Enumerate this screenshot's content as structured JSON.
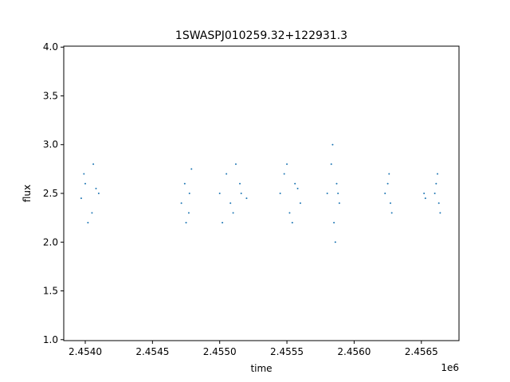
{
  "chart_data": {
    "type": "scatter",
    "title": "1SWASPJ010259.32+122931.3",
    "xlabel": "time",
    "ylabel": "flux",
    "x_offset_label": "1e6",
    "xlim": [
      2453840,
      2456780
    ],
    "ylim": [
      0.99,
      4.01
    ],
    "x_ticks": [
      2454000,
      2454500,
      2455000,
      2455500,
      2456000,
      2456500
    ],
    "x_tick_labels": [
      "2.4540",
      "2.4545",
      "2.4550",
      "2.4555",
      "2.4560",
      "2.4565"
    ],
    "y_ticks": [
      1.0,
      1.5,
      2.0,
      2.5,
      3.0,
      3.5,
      4.0
    ],
    "y_tick_labels": [
      "1.0",
      "1.5",
      "2.0",
      "2.5",
      "3.0",
      "3.5",
      "4.0"
    ],
    "grid": false,
    "point_color": "#1f77b4",
    "series": [
      {
        "x": [
          2453970,
          2454000,
          2454050,
          2454080,
          2453990,
          2454020,
          2454060,
          2454100,
          2454715,
          2454740,
          2454770,
          2454790,
          2454750,
          2454775,
          2455000,
          2455050,
          2455100,
          2455150,
          2455080,
          2455120,
          2455020,
          2455160,
          2455200,
          2455450,
          2455480,
          2455520,
          2455560,
          2455600,
          2455500,
          2455540,
          2455580,
          2455800,
          2455830,
          2455850,
          2455870,
          2455890,
          2455840,
          2455860,
          2455880,
          2456230,
          2456260,
          2456280,
          2456250,
          2456270,
          2456520,
          2456530,
          2456600,
          2456620,
          2456640,
          2456610,
          2456630
        ],
        "y": [
          2.45,
          2.6,
          2.3,
          2.55,
          2.7,
          2.2,
          2.8,
          2.5,
          2.4,
          2.6,
          2.3,
          2.75,
          2.2,
          2.5,
          2.5,
          2.7,
          2.3,
          2.6,
          2.4,
          2.8,
          2.2,
          2.5,
          2.45,
          2.5,
          2.7,
          2.3,
          2.6,
          2.4,
          2.8,
          2.2,
          2.55,
          2.5,
          2.8,
          2.2,
          2.6,
          2.4,
          3.0,
          2.0,
          2.5,
          2.5,
          2.7,
          2.3,
          2.6,
          2.4,
          2.5,
          2.45,
          2.5,
          2.7,
          2.3,
          2.6,
          2.4
        ]
      }
    ]
  }
}
